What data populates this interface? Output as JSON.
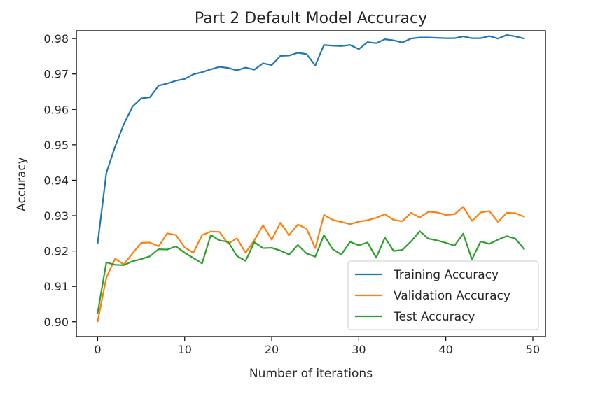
{
  "chart_data": {
    "type": "line",
    "title": "Part 2 Default Model Accuracy",
    "xlabel": "Number of iterations",
    "ylabel": "Accuracy",
    "xlim": [
      -2.45,
      51.45
    ],
    "ylim": [
      0.8958,
      0.9822
    ],
    "xticks": [
      0,
      10,
      20,
      30,
      40,
      50
    ],
    "xtick_labels": [
      "0",
      "10",
      "20",
      "30",
      "40",
      "50"
    ],
    "yticks": [
      0.9,
      0.91,
      0.92,
      0.93,
      0.94,
      0.95,
      0.96,
      0.97,
      0.98
    ],
    "ytick_labels": [
      "0.90",
      "0.91",
      "0.92",
      "0.93",
      "0.94",
      "0.95",
      "0.96",
      "0.97",
      "0.98"
    ],
    "grid": false,
    "legend_position": "lower right",
    "x": [
      0,
      1,
      2,
      3,
      4,
      5,
      6,
      7,
      8,
      9,
      10,
      11,
      12,
      13,
      14,
      15,
      16,
      17,
      18,
      19,
      20,
      21,
      22,
      23,
      24,
      25,
      26,
      27,
      28,
      29,
      30,
      31,
      32,
      33,
      34,
      35,
      36,
      37,
      38,
      39,
      40,
      41,
      42,
      43,
      44,
      45,
      46,
      47,
      48,
      49
    ],
    "series": [
      {
        "name": "Training Accuracy",
        "color": "#1f77b4",
        "values": [
          0.9222,
          0.9421,
          0.9495,
          0.9558,
          0.9608,
          0.9631,
          0.9634,
          0.9667,
          0.9673,
          0.9681,
          0.9686,
          0.9699,
          0.9705,
          0.9713,
          0.972,
          0.9717,
          0.971,
          0.9718,
          0.9712,
          0.973,
          0.9725,
          0.9751,
          0.9752,
          0.976,
          0.9756,
          0.9724,
          0.9782,
          0.978,
          0.9779,
          0.9782,
          0.977,
          0.979,
          0.9787,
          0.9798,
          0.9795,
          0.9789,
          0.98,
          0.9803,
          0.9803,
          0.9802,
          0.9801,
          0.9801,
          0.9806,
          0.9801,
          0.9801,
          0.9807,
          0.98,
          0.981,
          0.9806,
          0.98
        ]
      },
      {
        "name": "Validation Accuracy",
        "color": "#ff7f0e",
        "values": [
          0.9001,
          0.9125,
          0.9178,
          0.9162,
          0.9193,
          0.9223,
          0.9224,
          0.9213,
          0.925,
          0.9245,
          0.921,
          0.9195,
          0.9245,
          0.9255,
          0.9254,
          0.922,
          0.9236,
          0.9195,
          0.923,
          0.9273,
          0.9232,
          0.928,
          0.9245,
          0.9275,
          0.9263,
          0.9208,
          0.9302,
          0.9288,
          0.9282,
          0.9276,
          0.9283,
          0.9287,
          0.9294,
          0.9304,
          0.9288,
          0.9284,
          0.9308,
          0.9295,
          0.9311,
          0.9309,
          0.9302,
          0.9304,
          0.9325,
          0.9285,
          0.9309,
          0.9313,
          0.9282,
          0.9308,
          0.9307,
          0.9297
        ]
      },
      {
        "name": "Test Accuracy",
        "color": "#2ca02c",
        "values": [
          0.9025,
          0.9168,
          0.9161,
          0.916,
          0.9171,
          0.9177,
          0.9185,
          0.9205,
          0.9204,
          0.9213,
          0.9195,
          0.918,
          0.9165,
          0.9245,
          0.923,
          0.9226,
          0.9186,
          0.9172,
          0.9225,
          0.9208,
          0.9209,
          0.9201,
          0.919,
          0.9217,
          0.9193,
          0.9184,
          0.9245,
          0.9205,
          0.919,
          0.9226,
          0.9216,
          0.9224,
          0.9181,
          0.9238,
          0.92,
          0.9203,
          0.9227,
          0.9256,
          0.9235,
          0.923,
          0.9223,
          0.9215,
          0.9249,
          0.9176,
          0.9227,
          0.922,
          0.9232,
          0.9242,
          0.9235,
          0.9205
        ]
      }
    ]
  }
}
